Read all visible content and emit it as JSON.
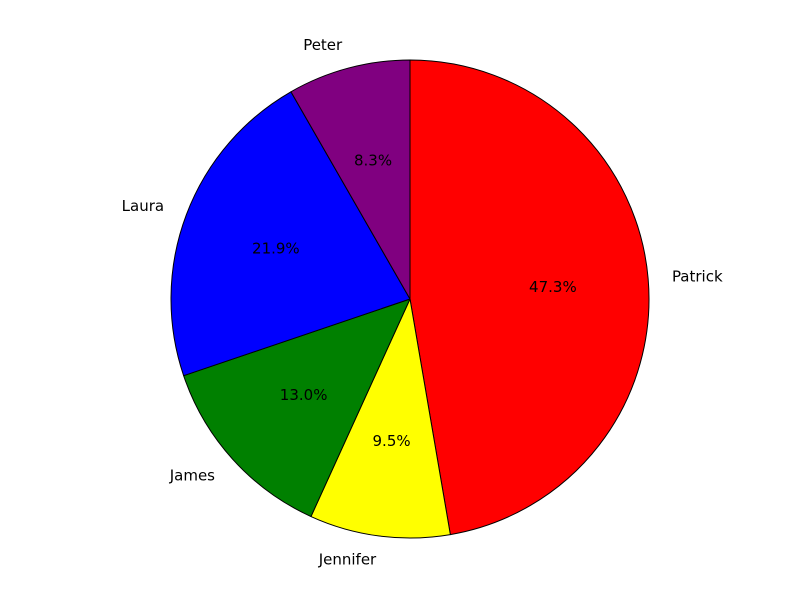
{
  "chart_data": {
    "type": "pie",
    "title": "",
    "start_angle_deg": 90,
    "direction": "clockwise",
    "slices": [
      {
        "label": "Patrick",
        "value": 47.3,
        "pct_label": "47.3%",
        "color": "#ff0000"
      },
      {
        "label": "Jennifer",
        "value": 9.5,
        "pct_label": "9.5%",
        "color": "#ffff00"
      },
      {
        "label": "James",
        "value": 13.0,
        "pct_label": "13.0%",
        "color": "#008000"
      },
      {
        "label": "Laura",
        "value": 21.9,
        "pct_label": "21.9%",
        "color": "#0000ff"
      },
      {
        "label": "Peter",
        "value": 8.3,
        "pct_label": "8.3%",
        "color": "#800080"
      }
    ]
  }
}
